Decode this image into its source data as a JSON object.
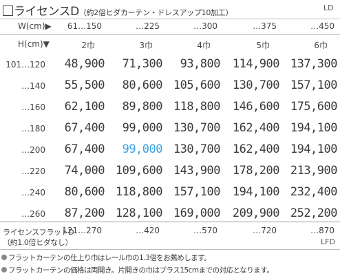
{
  "title": {
    "main": "ライセンスD",
    "sub": "（約2倍ヒダカーテン・ドレスアップ10加工）",
    "code": "LD"
  },
  "width_header": {
    "label": "W(cm)▶",
    "cols": [
      "61…150",
      "…225",
      "…300",
      "…375",
      "…450"
    ]
  },
  "height_header": {
    "label": "H(cm)▼",
    "cols": [
      "2巾",
      "3巾",
      "4巾",
      "5巾",
      "6巾"
    ]
  },
  "rows": [
    {
      "label": "101…120",
      "prices": [
        "48,900",
        "71,300",
        "93,800",
        "114,900",
        "137,300"
      ]
    },
    {
      "label": "…140",
      "prices": [
        "55,500",
        "80,600",
        "105,600",
        "130,700",
        "157,100"
      ]
    },
    {
      "label": "…160",
      "prices": [
        "62,100",
        "89,800",
        "118,800",
        "146,600",
        "175,600"
      ]
    },
    {
      "label": "…180",
      "prices": [
        "67,400",
        "99,000",
        "130,700",
        "162,400",
        "194,100"
      ]
    },
    {
      "label": "…200",
      "prices": [
        "67,400",
        "99,000",
        "130,700",
        "162,400",
        "194,100"
      ]
    },
    {
      "label": "…220",
      "prices": [
        "74,000",
        "109,600",
        "143,900",
        "178,200",
        "213,900"
      ]
    },
    {
      "label": "…240",
      "prices": [
        "80,600",
        "118,800",
        "157,100",
        "194,100",
        "232,400"
      ]
    },
    {
      "label": "…260",
      "prices": [
        "87,200",
        "128,100",
        "169,000",
        "209,900",
        "252,200"
      ]
    }
  ],
  "highlight": {
    "row": 4,
    "col": 1,
    "color": "#3aa0e0"
  },
  "flat": {
    "label": "ライセンスフラットD",
    "note": "（約1.0倍ヒダなし）",
    "cols": [
      "121…270",
      "…420",
      "…570",
      "…720",
      "…870"
    ],
    "code": "LFD"
  },
  "notes": [
    "フラットカーテンの仕上り巾はレール巾の1.3倍をお薦めします。",
    "フラットカーテンの価格は両開き。片開きの巾はプラス15cmまでの対応となります。"
  ]
}
